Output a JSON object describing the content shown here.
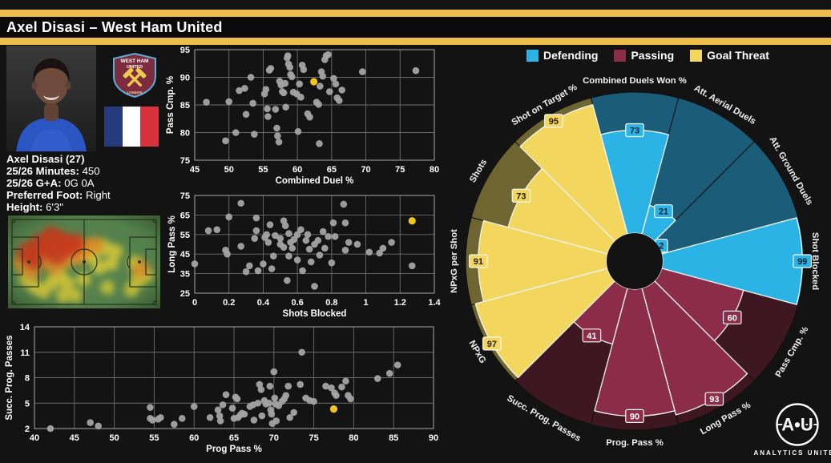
{
  "header": {
    "title": "Axel Disasi – West Ham United"
  },
  "colors": {
    "accent_gold": "#EFBD4A",
    "background": "#131313",
    "scatter_point": "#A3A3A3",
    "scatter_highlight": "#F4C41F",
    "grid": "#6C6C6C"
  },
  "player": {
    "name_line": "Axel Disasi (27)",
    "info": [
      {
        "label": "25/26 Minutes:",
        "value": "450"
      },
      {
        "label": "25/26 G+A:",
        "value": "0G 0A"
      },
      {
        "label": "Preferred Foot:",
        "value": "Right"
      },
      {
        "label": "Height:",
        "value": "6'3\""
      }
    ],
    "badge": {
      "line1": "WEST HAM",
      "line2": "UNITED",
      "line3": "LONDON"
    },
    "nationality": "France"
  },
  "branding": {
    "logo_text": "A•U",
    "logo_subtext": "ANALYTICS  UNITED"
  },
  "chart_data": [
    {
      "id": "duel-pass-scatter",
      "type": "scatter",
      "xlabel": "Combined Duel %",
      "ylabel": "Pass  Cmp. %",
      "xlim": [
        45,
        80
      ],
      "ylim": [
        75,
        95
      ],
      "xticks": [
        45,
        50,
        55,
        60,
        65,
        70,
        75,
        80
      ],
      "yticks": [
        75,
        80,
        85,
        90,
        95
      ],
      "grid": true,
      "point_color": "#A3A3A3",
      "highlight_color": "#F4C41F",
      "highlight": [
        62.4,
        89.2
      ],
      "points": [
        [
          46.7,
          85.5
        ],
        [
          49.5,
          78.5
        ],
        [
          50,
          85.6
        ],
        [
          51,
          80
        ],
        [
          51.5,
          87.6
        ],
        [
          52.3,
          88
        ],
        [
          52.5,
          83.3
        ],
        [
          53.2,
          90
        ],
        [
          53.5,
          85.3
        ],
        [
          53.7,
          79.7
        ],
        [
          55.2,
          87
        ],
        [
          55.4,
          87.8
        ],
        [
          55.6,
          84.3
        ],
        [
          55.7,
          82.9
        ],
        [
          55.9,
          91.3
        ],
        [
          56.1,
          91.6
        ],
        [
          56.8,
          84.2
        ],
        [
          57,
          80.8
        ],
        [
          57.1,
          79.4
        ],
        [
          57.3,
          78.3
        ],
        [
          57.4,
          89.3
        ],
        [
          57.6,
          88.6
        ],
        [
          57.8,
          87.4
        ],
        [
          58,
          87.2
        ],
        [
          58.2,
          88.9
        ],
        [
          58.3,
          84.6
        ],
        [
          58.5,
          93.5
        ],
        [
          58.6,
          93.9
        ],
        [
          58.7,
          92.4
        ],
        [
          58.9,
          91.8
        ],
        [
          59,
          90.5
        ],
        [
          59.2,
          90.1
        ],
        [
          59.4,
          87.3
        ],
        [
          59.9,
          87
        ],
        [
          60.1,
          80.2
        ],
        [
          60.3,
          88.8
        ],
        [
          60.5,
          86.4
        ],
        [
          60.7,
          92.2
        ],
        [
          60.9,
          91.4
        ],
        [
          61.5,
          83.4
        ],
        [
          61.8,
          82.8
        ],
        [
          62.8,
          85.5
        ],
        [
          63.1,
          85.1
        ],
        [
          63.2,
          78
        ],
        [
          63.3,
          88.4
        ],
        [
          63.5,
          91
        ],
        [
          63.7,
          90.2
        ],
        [
          64,
          93.2
        ],
        [
          64.2,
          93.9
        ],
        [
          64.5,
          94.1
        ],
        [
          64.7,
          87.4
        ],
        [
          65.3,
          89.8
        ],
        [
          65.6,
          88.8
        ],
        [
          65.8,
          86.3
        ],
        [
          66.1,
          85.8
        ],
        [
          66.5,
          87.7
        ],
        [
          69.5,
          91
        ],
        [
          77.3,
          91.2
        ]
      ]
    },
    {
      "id": "blocked-longpass-scatter",
      "type": "scatter",
      "xlabel": "Shots Blocked",
      "ylabel": "Long Pass %",
      "xlim": [
        0,
        1.4
      ],
      "ylim": [
        25,
        75
      ],
      "xticks": [
        0,
        0.2,
        0.4,
        0.6,
        0.8,
        1,
        1.2,
        1.4
      ],
      "yticks": [
        25,
        35,
        45,
        55,
        65,
        75
      ],
      "grid": true,
      "point_color": "#A3A3A3",
      "highlight_color": "#F4C41F",
      "highlight": [
        1.27,
        62
      ],
      "points": [
        [
          0,
          40
        ],
        [
          0.08,
          57
        ],
        [
          0.13,
          57.5
        ],
        [
          0.18,
          47
        ],
        [
          0.19,
          45
        ],
        [
          0.2,
          64
        ],
        [
          0.27,
          71
        ],
        [
          0.27,
          49
        ],
        [
          0.3,
          36
        ],
        [
          0.32,
          39
        ],
        [
          0.35,
          53
        ],
        [
          0.36,
          57
        ],
        [
          0.36,
          63.5
        ],
        [
          0.37,
          36.5
        ],
        [
          0.4,
          40
        ],
        [
          0.41,
          53.5
        ],
        [
          0.42,
          55
        ],
        [
          0.43,
          51
        ],
        [
          0.44,
          60
        ],
        [
          0.45,
          37.5
        ],
        [
          0.46,
          44
        ],
        [
          0.47,
          54.5
        ],
        [
          0.5,
          53
        ],
        [
          0.5,
          50
        ],
        [
          0.52,
          48.5
        ],
        [
          0.52,
          62
        ],
        [
          0.53,
          59.5
        ],
        [
          0.54,
          31.5
        ],
        [
          0.55,
          55.5
        ],
        [
          0.55,
          44
        ],
        [
          0.56,
          51
        ],
        [
          0.57,
          48
        ],
        [
          0.58,
          52.5
        ],
        [
          0.6,
          42
        ],
        [
          0.6,
          55
        ],
        [
          0.62,
          57.5
        ],
        [
          0.63,
          36.5
        ],
        [
          0.65,
          52
        ],
        [
          0.66,
          55
        ],
        [
          0.67,
          47.5
        ],
        [
          0.68,
          41
        ],
        [
          0.7,
          28.5
        ],
        [
          0.7,
          50
        ],
        [
          0.72,
          52
        ],
        [
          0.73,
          44.5
        ],
        [
          0.75,
          56.5
        ],
        [
          0.76,
          48
        ],
        [
          0.78,
          54
        ],
        [
          0.8,
          40.5
        ],
        [
          0.81,
          61
        ],
        [
          0.82,
          54
        ],
        [
          0.87,
          70.5
        ],
        [
          0.88,
          61
        ],
        [
          0.88,
          47
        ],
        [
          0.9,
          51
        ],
        [
          0.95,
          50
        ],
        [
          1.02,
          46
        ],
        [
          1.08,
          45.5
        ],
        [
          1.1,
          48
        ],
        [
          1.15,
          51
        ],
        [
          1.27,
          39
        ]
      ]
    },
    {
      "id": "progpass-scatter",
      "type": "scatter",
      "xlabel": "Prog Pass %",
      "ylabel": "Succ. Prog. Passes",
      "xlim": [
        40,
        90
      ],
      "ylim": [
        2,
        14
      ],
      "xticks": [
        40,
        45,
        50,
        55,
        60,
        65,
        70,
        75,
        80,
        85,
        90
      ],
      "yticks": [
        2,
        5,
        8,
        11,
        14
      ],
      "grid": true,
      "point_color": "#A3A3A3",
      "highlight_color": "#F4C41F",
      "highlight": [
        77.5,
        4.3
      ],
      "points": [
        [
          42,
          2
        ],
        [
          47,
          2.7
        ],
        [
          48,
          2.3
        ],
        [
          54.5,
          4.5
        ],
        [
          54.5,
          3.2
        ],
        [
          54.8,
          3
        ],
        [
          55.5,
          3.1
        ],
        [
          55.8,
          3.3
        ],
        [
          57.5,
          2.5
        ],
        [
          58.5,
          3.2
        ],
        [
          60,
          4.6
        ],
        [
          62,
          3.3
        ],
        [
          63,
          4.2
        ],
        [
          63.2,
          3.5
        ],
        [
          63.3,
          2.9
        ],
        [
          63.6,
          4.8
        ],
        [
          64,
          6
        ],
        [
          64.8,
          4.4
        ],
        [
          65,
          3.2
        ],
        [
          65.2,
          5.7
        ],
        [
          65.4,
          5.5
        ],
        [
          65.5,
          3.3
        ],
        [
          65.8,
          3.6
        ],
        [
          66,
          3.8
        ],
        [
          66.3,
          3.7
        ],
        [
          67,
          4.6
        ],
        [
          67.4,
          4.8
        ],
        [
          67.5,
          3
        ],
        [
          68,
          5
        ],
        [
          68.2,
          7.2
        ],
        [
          68.4,
          6.6
        ],
        [
          68.5,
          3.5
        ],
        [
          68.8,
          5.3
        ],
        [
          69,
          4.9
        ],
        [
          69.4,
          5
        ],
        [
          69.5,
          7
        ],
        [
          69.6,
          4.2
        ],
        [
          69.7,
          3.7
        ],
        [
          69.8,
          2.6
        ],
        [
          70,
          8.7
        ],
        [
          70.1,
          5.6
        ],
        [
          70.2,
          4.9
        ],
        [
          70.3,
          2.9
        ],
        [
          70.6,
          4.7
        ],
        [
          71,
          5.2
        ],
        [
          71.3,
          5.5
        ],
        [
          71.5,
          5.9
        ],
        [
          71.8,
          7
        ],
        [
          72,
          3.3
        ],
        [
          72.5,
          3.9
        ],
        [
          73.3,
          7.2
        ],
        [
          73.5,
          11
        ],
        [
          74,
          5.6
        ],
        [
          74.5,
          5.3
        ],
        [
          75,
          5.2
        ],
        [
          76.5,
          7
        ],
        [
          77.2,
          6.8
        ],
        [
          77.6,
          6.2
        ],
        [
          77.8,
          5.9
        ],
        [
          78.5,
          6.9
        ],
        [
          79,
          7.6
        ],
        [
          79.3,
          5.9
        ],
        [
          79.6,
          5.5
        ],
        [
          83,
          7.9
        ],
        [
          84.5,
          8.5
        ],
        [
          85.5,
          9.5
        ]
      ]
    },
    {
      "id": "percentile-pizza",
      "type": "pizza",
      "groups": [
        {
          "name": "Defending",
          "color": "#2BB3E6",
          "bg_color": "#1B5C78",
          "chip_text": "#07222F"
        },
        {
          "name": "Passing",
          "color": "#8C2C4B",
          "bg_color": "#3F1723",
          "chip_text": "#FFFFFF"
        },
        {
          "name": "Goal Threat",
          "color": "#F3D65E",
          "bg_color": "#6E6530",
          "chip_text": "#231E04"
        }
      ],
      "slices": [
        {
          "label": "Combined Duels Won %",
          "value": 73,
          "group": "Defending"
        },
        {
          "label": "Att. Aerial Duels",
          "value": 21,
          "group": "Defending"
        },
        {
          "label": "Att. Ground Duels",
          "value": 2,
          "group": "Defending"
        },
        {
          "label": "Shot Blocked",
          "value": 99,
          "group": "Defending"
        },
        {
          "label": "Pass Cmp. %",
          "value": 60,
          "group": "Passing"
        },
        {
          "label": "Long Pass %",
          "value": 93,
          "group": "Passing"
        },
        {
          "label": "Prog. Pass %",
          "value": 90,
          "group": "Passing"
        },
        {
          "label": "Succ. Prog. Passes",
          "value": 41,
          "group": "Passing"
        },
        {
          "label": "NPxG",
          "value": 97,
          "group": "Goal Threat"
        },
        {
          "label": "NPxG per Shot",
          "value": 91,
          "group": "Goal Threat"
        },
        {
          "label": "Shots",
          "value": 73,
          "group": "Goal Threat"
        },
        {
          "label": "Shot on Target %",
          "value": 95,
          "group": "Goal Threat"
        }
      ]
    },
    {
      "id": "touch-heatmap",
      "type": "heatmap",
      "pitch_color": "#598750",
      "line_color": "#24331F",
      "points": [
        [
          24,
          47,
          1
        ],
        [
          32,
          55,
          0.95
        ],
        [
          54,
          27,
          0.95
        ],
        [
          66,
          33,
          1
        ],
        [
          76,
          40,
          0.92
        ],
        [
          61,
          50,
          0.9
        ],
        [
          49,
          40,
          0.85
        ],
        [
          84,
          35,
          0.85
        ],
        [
          39,
          35,
          0.8
        ],
        [
          92,
          43,
          0.7
        ],
        [
          19,
          60,
          0.72
        ],
        [
          29,
          70,
          0.6
        ],
        [
          44,
          55,
          0.62
        ],
        [
          59,
          65,
          0.55
        ],
        [
          74,
          55,
          0.6
        ],
        [
          89,
          50,
          0.6
        ],
        [
          99,
          40,
          0.6
        ],
        [
          109,
          37,
          0.55
        ],
        [
          119,
          40,
          0.5
        ],
        [
          104,
          50,
          0.45
        ],
        [
          64,
          75,
          0.4
        ],
        [
          74,
          85,
          0.35
        ],
        [
          54,
          85,
          0.35
        ],
        [
          44,
          95,
          0.3
        ],
        [
          69,
          100,
          0.3
        ],
        [
          84,
          100,
          0.25
        ],
        [
          94,
          80,
          0.3
        ],
        [
          114,
          65,
          0.3
        ],
        [
          124,
          90,
          0.25
        ],
        [
          34,
          90,
          0.3
        ],
        [
          24,
          80,
          0.4
        ],
        [
          134,
          45,
          0.35
        ],
        [
          129,
          60,
          0.3
        ],
        [
          159,
          60,
          0.45
        ],
        [
          166,
          67,
          0.6
        ],
        [
          171,
          74,
          0.5
        ],
        [
          162,
          80,
          0.42
        ],
        [
          154,
          93,
          0.3
        ]
      ]
    }
  ]
}
